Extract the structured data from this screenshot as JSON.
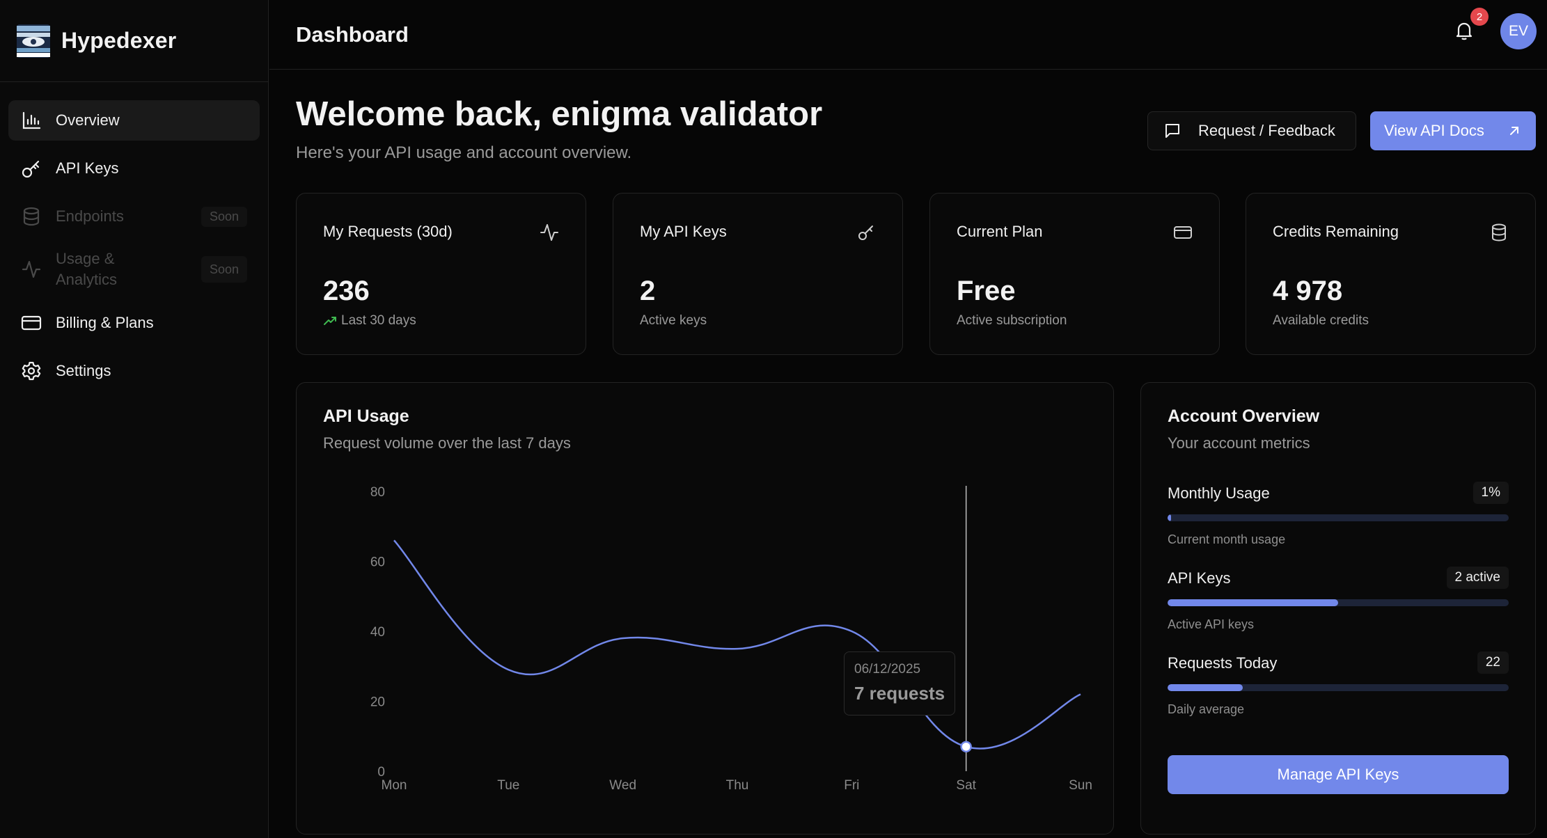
{
  "app": {
    "name": "Hypedexer"
  },
  "sidebar": {
    "items": [
      {
        "label": "Overview",
        "icon": "bar-chart-icon",
        "active": true
      },
      {
        "label": "API Keys",
        "icon": "key-icon"
      },
      {
        "label": "Endpoints",
        "icon": "database-icon",
        "disabled": true,
        "badge": "Soon"
      },
      {
        "label": "Usage & Analytics",
        "label_line1": "Usage &",
        "label_line2": "Analytics",
        "icon": "activity-icon",
        "disabled": true,
        "badge": "Soon"
      },
      {
        "label": "Billing & Plans",
        "icon": "credit-card-icon"
      },
      {
        "label": "Settings",
        "icon": "gear-icon"
      }
    ]
  },
  "header": {
    "title": "Dashboard",
    "notifications_count": "2",
    "avatar_initials": "EV"
  },
  "welcome": {
    "title": "Welcome back, enigma validator",
    "subtitle": "Here's your API usage and account overview.",
    "feedback_label": "Request / Feedback",
    "docs_label": "View API Docs"
  },
  "stats": [
    {
      "title": "My Requests (30d)",
      "value": "236",
      "sub": "Last 30 days",
      "icon": "activity-icon"
    },
    {
      "title": "My API Keys",
      "value": "2",
      "sub": "Active keys",
      "icon": "key-icon"
    },
    {
      "title": "Current Plan",
      "value": "Free",
      "sub": "Active subscription",
      "icon": "credit-card-icon"
    },
    {
      "title": "Credits Remaining",
      "value": "4 978",
      "sub": "Available credits",
      "icon": "database-icon"
    }
  ],
  "usage_panel": {
    "title": "API Usage",
    "subtitle": "Request volume over the last 7 days",
    "tooltip": {
      "date": "06/12/2025",
      "value": "7 requests"
    }
  },
  "account": {
    "title": "Account Overview",
    "subtitle": "Your account metrics",
    "metrics": [
      {
        "label": "Monthly Usage",
        "badge": "1%",
        "note": "Current month usage",
        "fill_pct": 1
      },
      {
        "label": "API Keys",
        "badge": "2 active",
        "note": "Active API keys",
        "fill_pct": 50
      },
      {
        "label": "Requests Today",
        "badge": "22",
        "note": "Daily average",
        "fill_pct": 22
      }
    ],
    "button_label": "Manage API Keys"
  },
  "colors": {
    "accent": "#7288ea",
    "background": "#060606",
    "badge_red": "#e5484d",
    "trend_green": "#3fb950"
  },
  "chart_data": {
    "type": "line",
    "categories": [
      "Mon",
      "Tue",
      "Wed",
      "Thu",
      "Fri",
      "Sat",
      "Sun"
    ],
    "values": [
      66,
      29,
      38,
      35,
      40,
      7,
      22
    ],
    "ylim": [
      0,
      80
    ],
    "yticks": [
      0,
      20,
      40,
      60,
      80
    ],
    "highlight_index": 5,
    "grid": false
  }
}
